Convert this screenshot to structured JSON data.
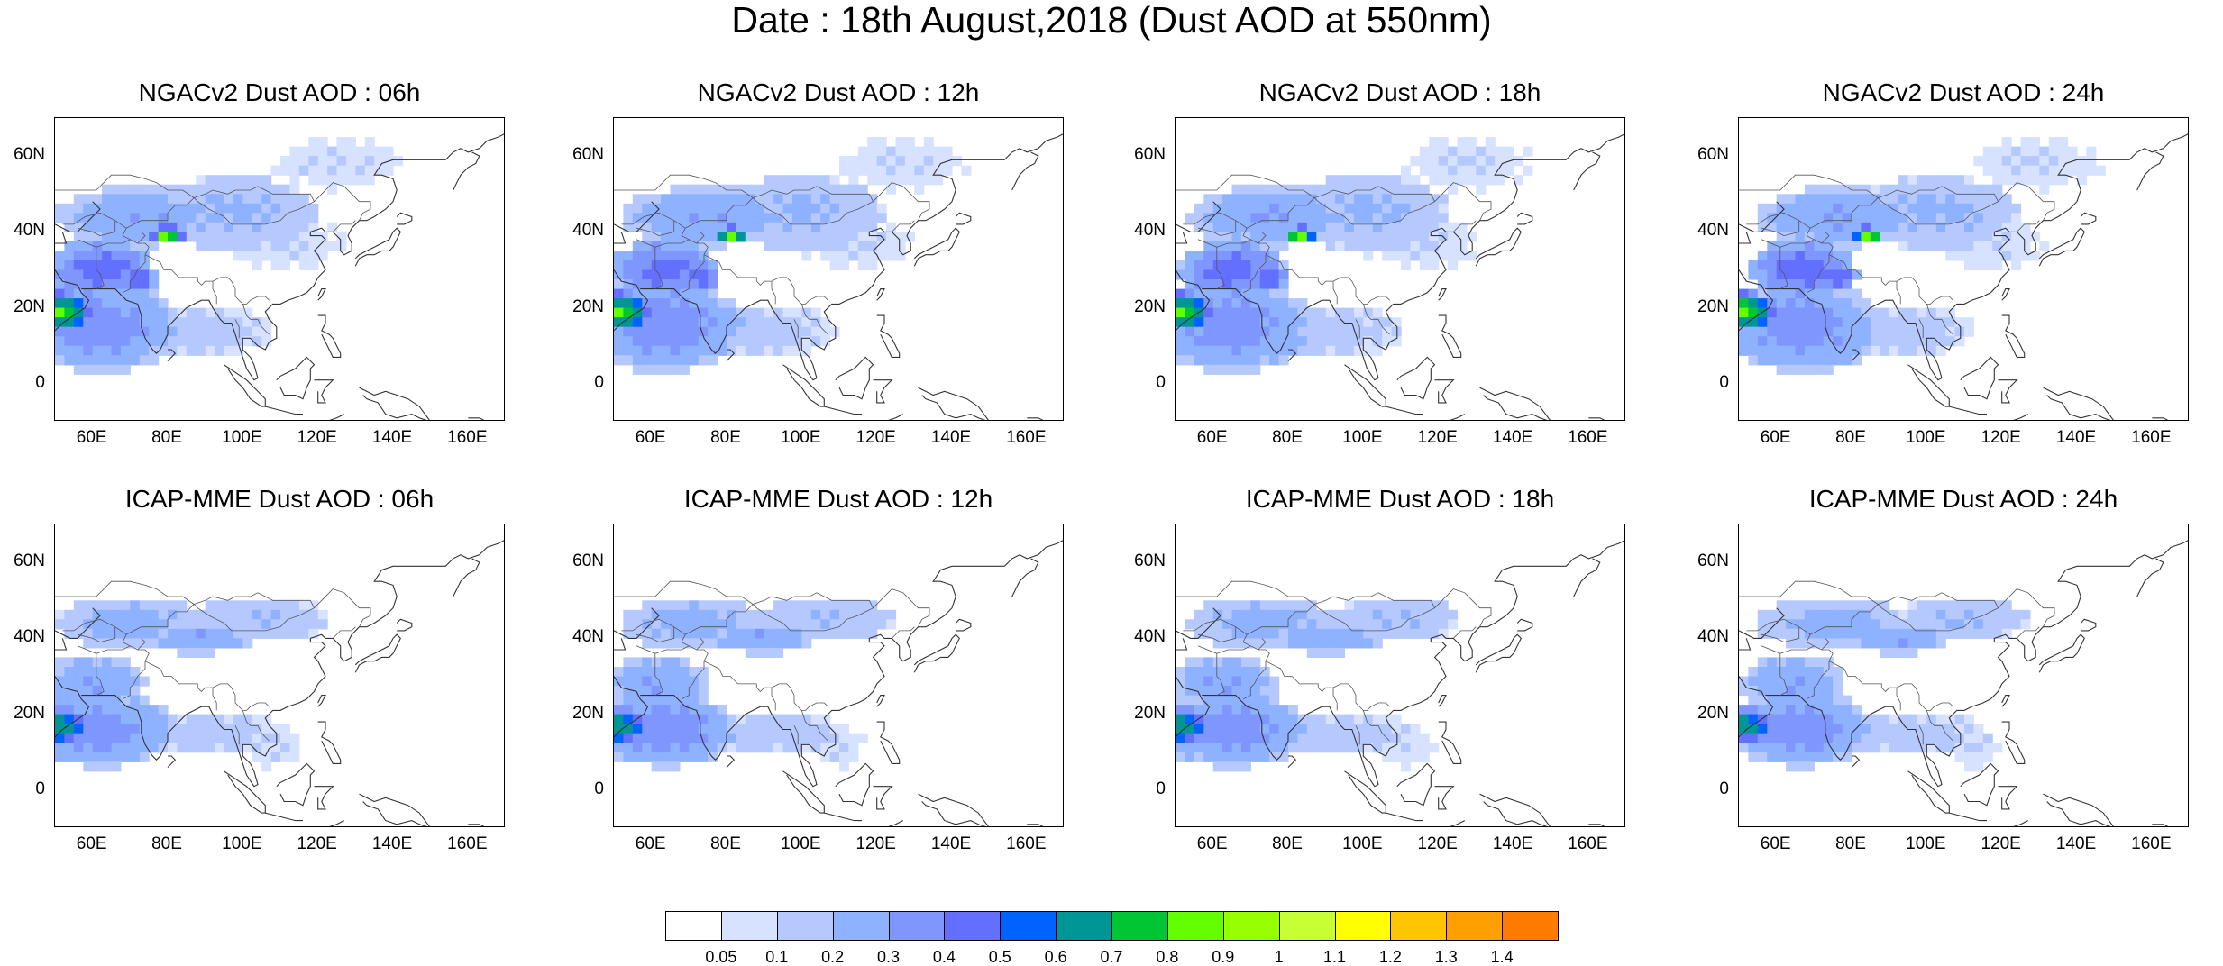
{
  "title": "Date : 18th August,2018 (Dust AOD at 550nm)",
  "axes": {
    "y_ticks": [
      "60N",
      "40N",
      "20N",
      "0"
    ],
    "y_tick_values": [
      60,
      40,
      20,
      0
    ],
    "x_ticks": [
      "60E",
      "80E",
      "100E",
      "120E",
      "140E",
      "160E"
    ],
    "x_tick_values": [
      60,
      80,
      100,
      120,
      140,
      160
    ],
    "lon_range": [
      50,
      170
    ],
    "lat_range": [
      -10,
      70
    ]
  },
  "panels": [
    {
      "id": "ngac-06",
      "title": "NGACv2 Dust AOD : 06h",
      "model": "ngac",
      "hour": 6
    },
    {
      "id": "ngac-12",
      "title": "NGACv2 Dust AOD : 12h",
      "model": "ngac",
      "hour": 12
    },
    {
      "id": "ngac-18",
      "title": "NGACv2 Dust AOD : 18h",
      "model": "ngac",
      "hour": 18
    },
    {
      "id": "ngac-24",
      "title": "NGACv2 Dust AOD : 24h",
      "model": "ngac",
      "hour": 24
    },
    {
      "id": "icap-06",
      "title": "ICAP-MME Dust AOD : 06h",
      "model": "icap",
      "hour": 6
    },
    {
      "id": "icap-12",
      "title": "ICAP-MME Dust AOD : 12h",
      "model": "icap",
      "hour": 12
    },
    {
      "id": "icap-18",
      "title": "ICAP-MME Dust AOD : 18h",
      "model": "icap",
      "hour": 18
    },
    {
      "id": "icap-24",
      "title": "ICAP-MME Dust AOD : 24h",
      "model": "icap",
      "hour": 24
    }
  ],
  "colorbar": {
    "colors": [
      "#ffffff",
      "#d6e2ff",
      "#b5c9ff",
      "#8eb2ff",
      "#7f96ff",
      "#6370ff",
      "#0063ff",
      "#009696",
      "#00c633",
      "#63ff00",
      "#96ff00",
      "#c6ff33",
      "#ffff00",
      "#ffc600",
      "#ffa000",
      "#ff7c00",
      "#ff1900"
    ],
    "labels": [
      "0.05",
      "0.1",
      "0.2",
      "0.3",
      "0.4",
      "0.5",
      "0.6",
      "0.7",
      "0.8",
      "0.9",
      "1",
      "1.1",
      "1.2",
      "1.3",
      "1.4"
    ]
  },
  "chart_data": {
    "type": "heatmap",
    "variable": "Dust AOD at 550nm",
    "levels": [
      0.05,
      0.1,
      0.2,
      0.3,
      0.4,
      0.5,
      0.6,
      0.7,
      0.8,
      0.9,
      1,
      1.1,
      1.2,
      1.3,
      1.4
    ],
    "features": {
      "ngac": [
        {
          "name": "arabian-sea-plume",
          "lon": 51,
          "lat": 19,
          "rlon": 9,
          "rlat": 5,
          "value": 0.8
        },
        {
          "name": "arabian-sea-broad",
          "lon": 62,
          "lat": 15,
          "rlon": 22,
          "rlat": 12,
          "value": 0.35
        },
        {
          "name": "iran-pakistan",
          "lon": 62,
          "lat": 30,
          "rlon": 14,
          "rlat": 8,
          "value": 0.45
        },
        {
          "name": "taklimakan",
          "lon": 80,
          "lat": 39,
          "rlon": 4,
          "rlat": 2.5,
          "value": 0.85
        },
        {
          "name": "thar",
          "lon": 72,
          "lat": 28,
          "rlon": 5,
          "rlat": 4,
          "value": 0.5
        },
        {
          "name": "central-asia",
          "lon": 72,
          "lat": 44,
          "rlon": 22,
          "rlat": 8,
          "value": 0.3
        },
        {
          "name": "mongolia-gobi",
          "lon": 98,
          "lat": 45,
          "rlon": 22,
          "rlat": 10,
          "value": 0.22
        },
        {
          "name": "siberia-tail",
          "lon": 125,
          "lat": 58,
          "rlon": 18,
          "rlat": 7,
          "value": 0.1
        },
        {
          "name": "bay-of-bengal",
          "lon": 88,
          "lat": 14,
          "rlon": 20,
          "rlat": 7,
          "value": 0.15
        },
        {
          "name": "north-china",
          "lon": 112,
          "lat": 37,
          "rlon": 16,
          "rlat": 7,
          "value": 0.1
        }
      ],
      "icap": [
        {
          "name": "arabian-sea-plume",
          "lon": 52,
          "lat": 17,
          "rlon": 7,
          "rlat": 5,
          "value": 0.65
        },
        {
          "name": "arabian-sea-broad",
          "lon": 62,
          "lat": 16,
          "rlon": 20,
          "rlat": 10,
          "value": 0.35
        },
        {
          "name": "iran-pakistan",
          "lon": 60,
          "lat": 28,
          "rlon": 14,
          "rlat": 8,
          "value": 0.3
        },
        {
          "name": "taklimakan",
          "lon": 88,
          "lat": 40,
          "rlon": 14,
          "rlat": 4,
          "value": 0.3
        },
        {
          "name": "central-asia",
          "lon": 70,
          "lat": 44,
          "rlon": 20,
          "rlat": 7,
          "value": 0.25
        },
        {
          "name": "mongolia-gobi",
          "lon": 105,
          "lat": 45,
          "rlon": 18,
          "rlat": 6,
          "value": 0.2
        },
        {
          "name": "bay-of-bengal",
          "lon": 90,
          "lat": 15,
          "rlon": 22,
          "rlat": 6,
          "value": 0.15
        },
        {
          "name": "south-china-sea",
          "lon": 108,
          "lat": 12,
          "rlon": 8,
          "rlat": 6,
          "value": 0.1
        }
      ]
    },
    "hour_shift_lon_per_6h": 1.5
  }
}
